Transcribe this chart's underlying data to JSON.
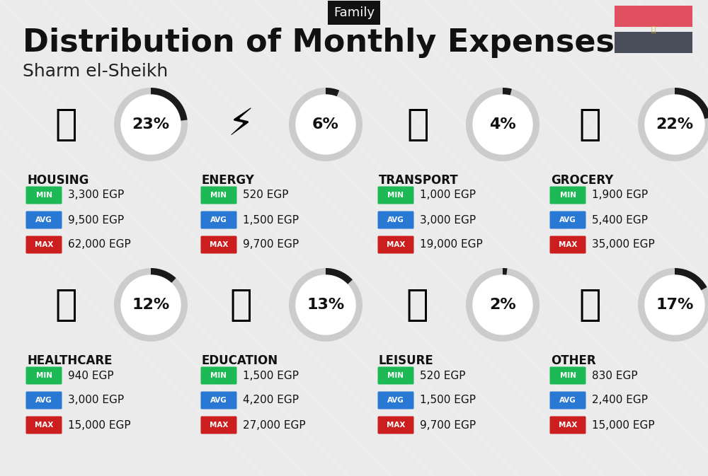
{
  "title": "Distribution of Monthly Expenses",
  "subtitle": "Sharm el-Sheikh",
  "header_label": "Family",
  "bg_color": "#ebebeb",
  "categories": [
    {
      "name": "HOUSING",
      "pct": 23,
      "min": "3,300 EGP",
      "avg": "9,500 EGP",
      "max": "62,000 EGP",
      "col": 0,
      "row": 0
    },
    {
      "name": "ENERGY",
      "pct": 6,
      "min": "520 EGP",
      "avg": "1,500 EGP",
      "max": "9,700 EGP",
      "col": 1,
      "row": 0
    },
    {
      "name": "TRANSPORT",
      "pct": 4,
      "min": "1,000 EGP",
      "avg": "3,000 EGP",
      "max": "19,000 EGP",
      "col": 2,
      "row": 0
    },
    {
      "name": "GROCERY",
      "pct": 22,
      "min": "1,900 EGP",
      "avg": "5,400 EGP",
      "max": "35,000 EGP",
      "col": 3,
      "row": 0
    },
    {
      "name": "HEALTHCARE",
      "pct": 12,
      "min": "940 EGP",
      "avg": "3,000 EGP",
      "max": "15,000 EGP",
      "col": 0,
      "row": 1
    },
    {
      "name": "EDUCATION",
      "pct": 13,
      "min": "1,500 EGP",
      "avg": "4,200 EGP",
      "max": "27,000 EGP",
      "col": 1,
      "row": 1
    },
    {
      "name": "LEISURE",
      "pct": 2,
      "min": "520 EGP",
      "avg": "1,500 EGP",
      "max": "9,700 EGP",
      "col": 2,
      "row": 1
    },
    {
      "name": "OTHER",
      "pct": 17,
      "min": "830 EGP",
      "avg": "2,400 EGP",
      "max": "15,000 EGP",
      "col": 3,
      "row": 1
    }
  ],
  "color_min": "#1db954",
  "color_avg": "#2979d4",
  "color_max": "#cc1e1e",
  "color_ring_filled": "#1a1a1a",
  "color_ring_empty": "#cccccc",
  "flag_red": "#e05060",
  "flag_dark": "#4a4e5a",
  "diag_lines_color": "#ffffff",
  "diag_lines_alpha": 0.18
}
